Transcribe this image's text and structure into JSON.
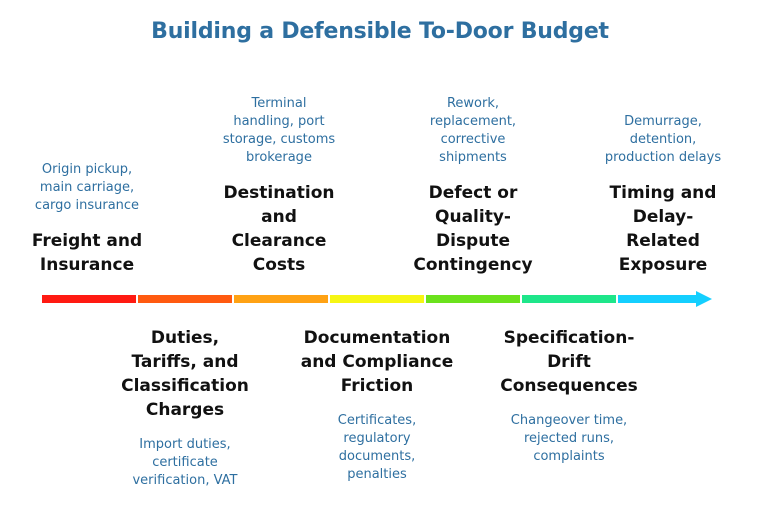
{
  "title": "Building a Defensible To-Door Budget",
  "stages": [
    {
      "heading": "Freight and\nInsurance",
      "description": "Origin pickup,\nmain carriage,\ncargo insurance",
      "position": "above",
      "color": "#ff1a12"
    },
    {
      "heading": "Duties,\nTariffs, and\nClassification\nCharges",
      "description": "Import duties,\ncertificate\nverification, VAT",
      "position": "below",
      "color": "#ff5a10"
    },
    {
      "heading": "Destination\nand\nClearance\nCosts",
      "description": "Terminal\nhandling, port\nstorage, customs\nbrokerage",
      "position": "above",
      "color": "#ffa214"
    },
    {
      "heading": "Documentation\nand Compliance\nFriction",
      "description": "Certificates,\nregulatory\ndocuments,\npenalties",
      "position": "below",
      "color": "#f6f614"
    },
    {
      "heading": "Defect or\nQuality-\nDispute\nContingency",
      "description": "Rework,\nreplacement,\ncorrective\nshipments",
      "position": "above",
      "color": "#6be21c"
    },
    {
      "heading": "Specification-\nDrift\nConsequences",
      "description": "Changeover time,\nrejected runs,\ncomplaints",
      "position": "below",
      "color": "#1ee68a"
    },
    {
      "heading": "Timing and\nDelay-\nRelated\nExposure",
      "description": "Demurrage,\ndetention,\nproduction delays",
      "position": "above",
      "color": "#14cfff"
    }
  ]
}
